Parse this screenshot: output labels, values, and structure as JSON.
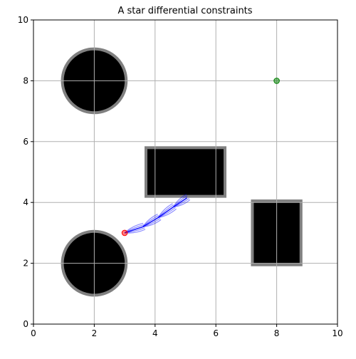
{
  "chart_data": {
    "type": "scatter",
    "title": "A star differential constraints",
    "xlabel": "",
    "ylabel": "",
    "xlim": [
      0,
      10
    ],
    "ylim": [
      0,
      10
    ],
    "xticks": [
      0,
      2,
      4,
      6,
      8,
      10
    ],
    "yticks": [
      0,
      2,
      4,
      6,
      8,
      10
    ],
    "grid": true,
    "obstacles": [
      {
        "shape": "circle",
        "cx": 2,
        "cy": 8,
        "r": 1.05
      },
      {
        "shape": "circle",
        "cx": 2,
        "cy": 2,
        "r": 1.05
      },
      {
        "shape": "rectangle",
        "x0": 3.7,
        "y0": 4.2,
        "x1": 6.3,
        "y1": 5.8
      },
      {
        "shape": "rectangle",
        "x0": 7.2,
        "y0": 1.95,
        "x1": 8.8,
        "y1": 4.05
      }
    ],
    "start": {
      "x": 3,
      "y": 3
    },
    "goal": {
      "x": 8,
      "y": 8
    },
    "path_nodes": [
      {
        "x": 3.0,
        "y": 3.0
      },
      {
        "x": 3.6,
        "y": 3.2
      },
      {
        "x": 4.1,
        "y": 3.5
      },
      {
        "x": 4.6,
        "y": 3.85
      },
      {
        "x": 5.05,
        "y": 4.15
      }
    ],
    "colors": {
      "obstacle_fill": "#000000",
      "obstacle_edge": "#808080",
      "start": "#ff0000",
      "goal": "#008000",
      "path": "#0000ff",
      "grid": "#b0b0b0"
    }
  }
}
